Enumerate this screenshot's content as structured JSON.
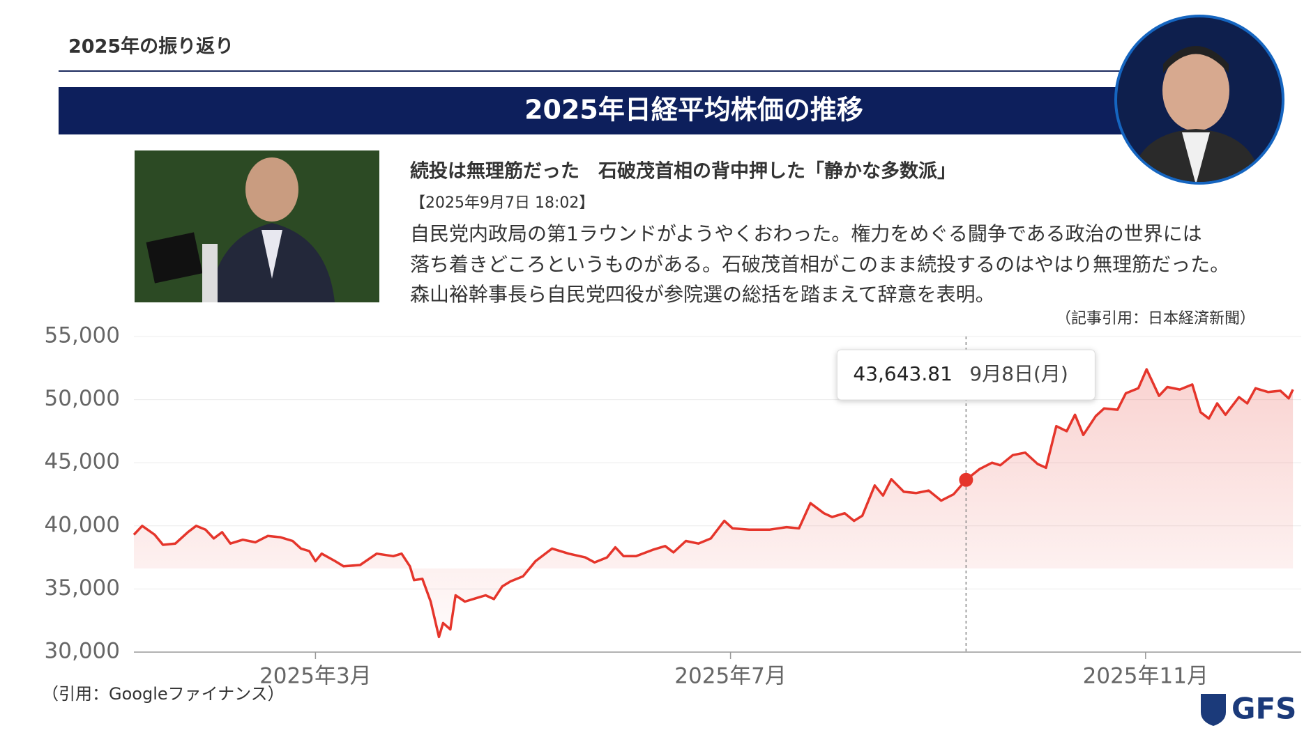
{
  "header": "2025年の振り返り",
  "banner_title": "2025年日経平均株価の推移",
  "article": {
    "headline": "続投は無理筋だった　石破茂首相の背中押した「静かな多数派」",
    "date": "【2025年9月7日 18:02】",
    "body": [
      "自民党内政局の第1ラウンドがようやくおわった。権力をめぐる闘争である政治の世界には",
      "落ち着きどころというものがある。石破茂首相がこのまま続投するのはやはり無理筋だった。",
      "森山裕幹事長ら自民党四役が参院選の総括を踏まえて辞意を表明。"
    ],
    "source": "（記事引用：日本経済新聞）"
  },
  "chart_data": {
    "type": "line",
    "color": "#e5352b",
    "grid": true,
    "x": [
      1.25,
      1.33,
      1.45,
      1.53,
      1.65,
      1.77,
      1.85,
      1.94,
      2.02,
      2.1,
      2.18,
      2.3,
      2.42,
      2.54,
      2.66,
      2.78,
      2.86,
      2.94,
      3.0,
      3.06,
      3.19,
      3.27,
      3.43,
      3.59,
      3.75,
      3.83,
      3.91,
      3.95,
      4.03,
      4.11,
      4.19,
      4.23,
      4.3,
      4.35,
      4.44,
      4.56,
      4.64,
      4.72,
      4.8,
      4.88,
      5.0,
      5.12,
      5.28,
      5.44,
      5.6,
      5.69,
      5.81,
      5.89,
      5.97,
      6.09,
      6.25,
      6.37,
      6.45,
      6.57,
      6.69,
      6.81,
      6.94,
      7.02,
      7.18,
      7.38,
      7.54,
      7.66,
      7.77,
      7.9,
      7.98,
      8.1,
      8.19,
      8.27,
      8.39,
      8.47,
      8.55,
      8.67,
      8.79,
      8.91,
      9.03,
      9.15,
      9.27,
      9.4,
      9.52,
      9.6,
      9.72,
      9.84,
      9.96,
      10.04,
      10.14,
      10.24,
      10.32,
      10.4,
      10.52,
      10.6,
      10.73,
      10.81,
      10.93,
      11.01,
      11.13,
      11.21,
      11.33,
      11.45,
      11.53,
      11.61,
      11.69,
      11.77,
      11.9,
      11.98,
      12.06,
      12.18,
      12.3,
      12.38,
      12.42
    ],
    "values": [
      39300,
      40000,
      39300,
      38500,
      38600,
      39500,
      40000,
      39700,
      39000,
      39500,
      38600,
      38900,
      38700,
      39200,
      39100,
      38800,
      38200,
      38000,
      37200,
      37800,
      37200,
      36800,
      36900,
      37800,
      37600,
      37800,
      36800,
      35700,
      35800,
      34000,
      31200,
      32300,
      31800,
      34500,
      34000,
      34300,
      34500,
      34200,
      35200,
      35600,
      36000,
      37200,
      38200,
      37800,
      37500,
      37100,
      37500,
      38300,
      37600,
      37600,
      38100,
      38400,
      37900,
      38800,
      38600,
      39000,
      40400,
      39800,
      39700,
      39700,
      39900,
      39800,
      41800,
      41000,
      40700,
      41000,
      40400,
      40800,
      43200,
      42400,
      43700,
      42700,
      42600,
      42800,
      42000,
      42500,
      43643.81,
      44500,
      45000,
      44800,
      45600,
      45800,
      44900,
      44600,
      47900,
      47500,
      48800,
      47200,
      48700,
      49300,
      49200,
      50500,
      50900,
      52400,
      50300,
      51000,
      50800,
      51200,
      49000,
      48500,
      49700,
      48800,
      50200,
      49700,
      50900,
      50600,
      50700,
      50100,
      50800
    ],
    "xlim": [
      1.25,
      12.5
    ],
    "ylim": [
      30000,
      55000
    ],
    "xticks": [
      {
        "value": 3,
        "label": "2025年3月"
      },
      {
        "value": 7,
        "label": "2025年7月"
      },
      {
        "value": 11,
        "label": "2025年11月"
      }
    ],
    "yticks": [
      {
        "value": 30000,
        "label": "30,000"
      },
      {
        "value": 35000,
        "label": "35,000"
      },
      {
        "value": 40000,
        "label": "40,000"
      },
      {
        "value": 45000,
        "label": "45,000"
      },
      {
        "value": 50000,
        "label": "50,000"
      },
      {
        "value": 55000,
        "label": "55,000"
      }
    ],
    "tooltip": {
      "x": 9.27,
      "value": {
        "value": 43643.81,
        "label": "43,643.81"
      },
      "date": "9月8日(月)"
    },
    "source": "（引用：Googleファイナンス）"
  },
  "logo": "GFS"
}
